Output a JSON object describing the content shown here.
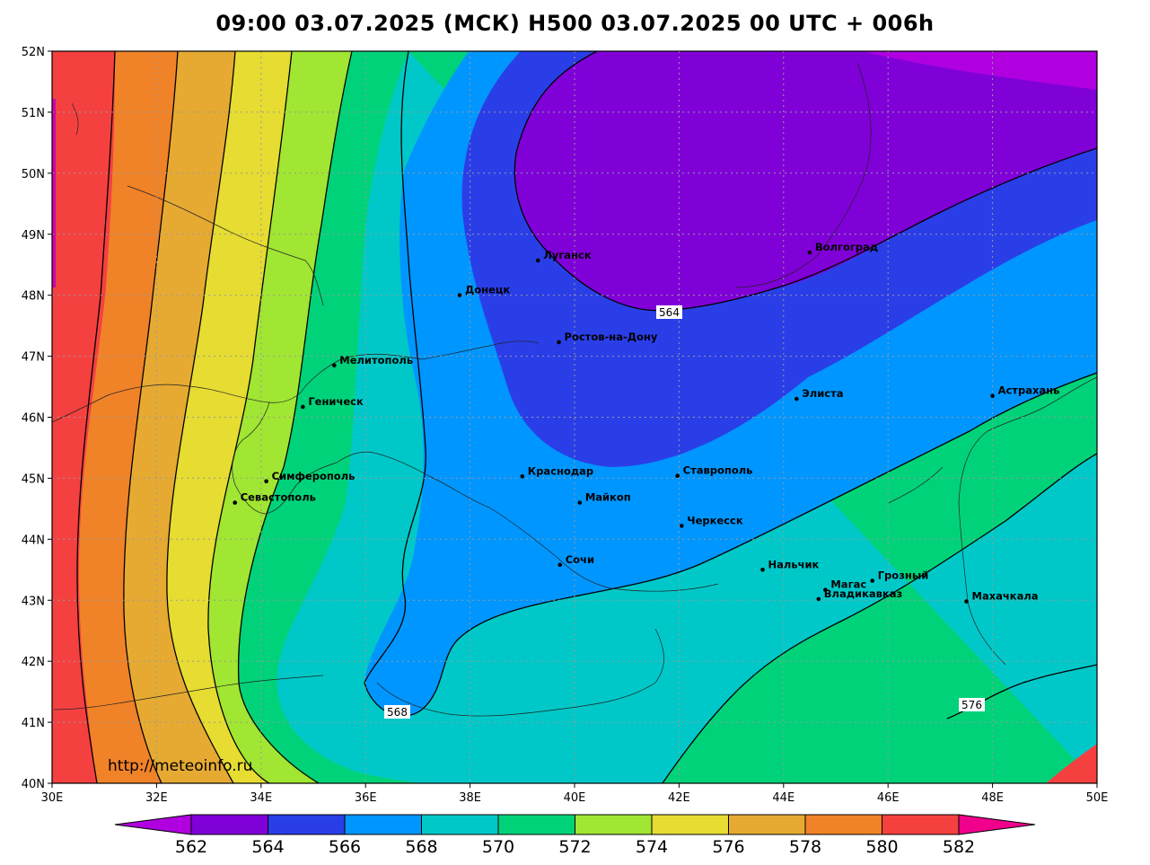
{
  "title": "09:00 03.07.2025 (МСК) H500  03.07.2025 00 UTC + 006h",
  "watermark": "http://meteoinfo.ru",
  "lat_labels": [
    "52N",
    "51N",
    "50N",
    "49N",
    "48N",
    "47N",
    "46N",
    "45N",
    "44N",
    "43N",
    "42N",
    "41N",
    "40N"
  ],
  "lon_labels": [
    "30E",
    "32E",
    "34E",
    "36E",
    "38E",
    "40E",
    "42E",
    "44E",
    "46E",
    "48E",
    "50E"
  ],
  "contour_labels": [
    "564",
    "568",
    "576"
  ],
  "colorbar": {
    "labels": [
      "562",
      "564",
      "566",
      "568",
      "570",
      "572",
      "574",
      "576",
      "578",
      "580",
      "582"
    ],
    "colors": [
      "#b000e0",
      "#8000d8",
      "#2a3ee8",
      "#0096ff",
      "#00c8c8",
      "#00d27a",
      "#a0e632",
      "#e6dc32",
      "#e6aa32",
      "#f08228",
      "#f54040",
      "#f0008c"
    ]
  },
  "cities": [
    {
      "name": "Волгоград",
      "lon": 44.5,
      "lat": 48.7
    },
    {
      "name": "Луганск",
      "lon": 39.3,
      "lat": 48.57
    },
    {
      "name": "Донецк",
      "lon": 37.8,
      "lat": 48.0
    },
    {
      "name": "Ростов-на-Дону",
      "lon": 39.7,
      "lat": 47.23
    },
    {
      "name": "Мелитополь",
      "lon": 35.4,
      "lat": 46.85
    },
    {
      "name": "Геническ",
      "lon": 34.8,
      "lat": 46.17
    },
    {
      "name": "Элиста",
      "lon": 44.25,
      "lat": 46.3
    },
    {
      "name": "Астрахань",
      "lon": 48.0,
      "lat": 46.35
    },
    {
      "name": "Симферополь",
      "lon": 34.1,
      "lat": 44.95
    },
    {
      "name": "Краснодар",
      "lon": 39.0,
      "lat": 45.03
    },
    {
      "name": "Ставрополь",
      "lon": 41.97,
      "lat": 45.04
    },
    {
      "name": "Севастополь",
      "lon": 33.5,
      "lat": 44.6
    },
    {
      "name": "Майкоп",
      "lon": 40.1,
      "lat": 44.6
    },
    {
      "name": "Черкесск",
      "lon": 42.05,
      "lat": 44.22
    },
    {
      "name": "Нальчик",
      "lon": 43.6,
      "lat": 43.5
    },
    {
      "name": "Сочи",
      "lon": 39.72,
      "lat": 43.58
    },
    {
      "name": "Магас",
      "lon": 44.8,
      "lat": 43.17
    },
    {
      "name": "Грозный",
      "lon": 45.7,
      "lat": 43.32
    },
    {
      "name": "Владикавказ",
      "lon": 44.67,
      "lat": 43.02
    },
    {
      "name": "Махачкала",
      "lon": 47.5,
      "lat": 42.98
    }
  ]
}
